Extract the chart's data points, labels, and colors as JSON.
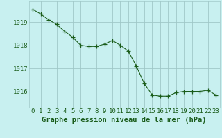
{
  "x": [
    0,
    1,
    2,
    3,
    4,
    5,
    6,
    7,
    8,
    9,
    10,
    11,
    12,
    13,
    14,
    15,
    16,
    17,
    18,
    19,
    20,
    21,
    22,
    23
  ],
  "y": [
    1019.55,
    1019.35,
    1019.1,
    1018.9,
    1018.6,
    1018.35,
    1018.0,
    1017.95,
    1017.95,
    1018.05,
    1018.2,
    1018.0,
    1017.75,
    1017.1,
    1016.35,
    1015.85,
    1015.8,
    1015.8,
    1015.95,
    1016.0,
    1016.0,
    1016.0,
    1016.05,
    1015.85
  ],
  "line_color": "#1a5c1a",
  "marker": "+",
  "marker_size": 4,
  "bg_color": "#c8f0f0",
  "grid_color": "#a0c8c8",
  "xlabel": "Graphe pression niveau de la mer (hPa)",
  "xlabel_fontsize": 7.5,
  "tick_fontsize": 6.5,
  "yticks": [
    1016,
    1017,
    1018,
    1019
  ],
  "xticks": [
    0,
    1,
    2,
    3,
    4,
    5,
    6,
    7,
    8,
    9,
    10,
    11,
    12,
    13,
    14,
    15,
    16,
    17,
    18,
    19,
    20,
    21,
    22,
    23
  ],
  "ylim": [
    1015.3,
    1019.9
  ],
  "xlim": [
    -0.5,
    23.5
  ]
}
